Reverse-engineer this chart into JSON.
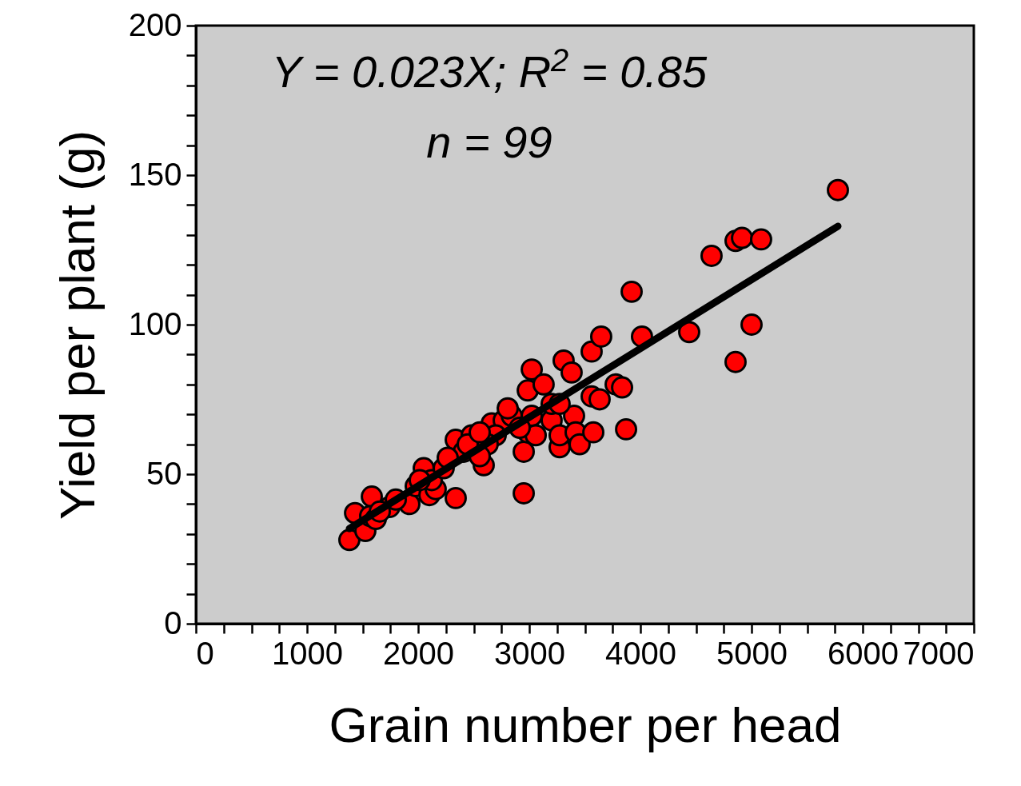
{
  "chart_data": {
    "type": "scatter",
    "xlabel": "Grain number per head",
    "ylabel": "Yield per plant (g)",
    "annotations": [
      "Y = 0.023X; R$^{2}$ = 0.85",
      "n = 99"
    ],
    "xlim": [
      0,
      7000
    ],
    "ylim": [
      0,
      200
    ],
    "xticks": [
      0,
      {
        "value": 250,
        "label": null
      },
      {
        "value": 500,
        "label": null
      },
      {
        "value": 750,
        "label": null
      },
      1000,
      {
        "value": 1250,
        "label": null
      },
      {
        "value": 1500,
        "label": null
      },
      {
        "value": 1750,
        "label": null
      },
      2000,
      {
        "value": 2250,
        "label": null
      },
      {
        "value": 2500,
        "label": null
      },
      {
        "value": 2750,
        "label": null
      },
      3000,
      {
        "value": 3250,
        "label": null
      },
      {
        "value": 3500,
        "label": null
      },
      {
        "value": 3750,
        "label": null
      },
      4000,
      {
        "value": 4250,
        "label": null
      },
      {
        "value": 4500,
        "label": null
      },
      {
        "value": 4750,
        "label": null
      },
      5000,
      {
        "value": 5250,
        "label": null
      },
      {
        "value": 5500,
        "label": null
      },
      {
        "value": 5750,
        "label": null
      },
      6000,
      {
        "value": 6250,
        "label": null
      },
      {
        "value": 6500,
        "label": null
      },
      {
        "value": 6750,
        "label": null
      },
      7000
    ],
    "yticks": [
      0,
      {
        "value": 10,
        "label": null
      },
      {
        "value": 20,
        "label": null
      },
      {
        "value": 30,
        "label": null
      },
      {
        "value": 40,
        "label": null
      },
      50,
      {
        "value": 60,
        "label": null
      },
      {
        "value": 70,
        "label": null
      },
      {
        "value": 80,
        "label": null
      },
      {
        "value": 90,
        "label": null
      },
      100,
      {
        "value": 110,
        "label": null
      },
      {
        "value": 120,
        "label": null
      },
      {
        "value": 130,
        "label": null
      },
      {
        "value": 140,
        "label": null
      },
      150,
      {
        "value": 160,
        "label": null
      },
      {
        "value": 170,
        "label": null
      },
      {
        "value": 180,
        "label": null
      },
      {
        "value": 190,
        "label": null
      },
      200
    ],
    "grid": false,
    "marker": "circle",
    "series": [
      {
        "type": "scatter",
        "color": "#ff0000",
        "x": [
          1381,
          1432,
          1525,
          1583,
          1568,
          1619,
          1741,
          1921,
          1978,
          2050,
          2101,
          2158,
          2122,
          2230,
          2338,
          2338,
          2410,
          2482,
          2590,
          2662,
          2770,
          2842,
          2950,
          2950,
          2986,
          3022,
          2986,
          3129,
          3022,
          3201,
          3273,
          3309,
          3273,
          3381,
          3403,
          3417,
          3453,
          3561,
          3576,
          3561,
          3647,
          3777,
          3835,
          3871,
          3921,
          4014,
          4439,
          4640,
          4856,
          4914,
          5086,
          4856,
          5000,
          5777,
          2698,
          2626,
          3058,
          2806,
          3633,
          3201,
          3273,
          2266,
          2554,
          2446,
          2914,
          2554,
          2014,
          1655,
          1799
        ],
        "values": [
          28,
          37,
          31,
          42.5,
          36,
          35,
          39,
          40,
          46,
          52,
          43,
          45,
          48,
          52,
          42,
          61.5,
          57.5,
          63,
          53,
          67,
          68,
          69.5,
          43.6,
          57.5,
          64,
          85,
          78,
          80,
          69.5,
          68,
          59,
          88,
          63,
          84,
          69.5,
          64,
          60,
          76,
          64,
          91,
          96,
          80,
          79,
          65,
          111,
          96,
          97.5,
          123,
          128,
          129,
          128.5,
          87.5,
          100,
          145,
          63,
          60,
          63,
          72,
          75,
          73.5,
          73.5,
          55.5,
          56,
          60,
          65.5,
          64,
          48,
          37.5,
          41.5
        ]
      },
      {
        "type": "line",
        "color": "#000000",
        "line_style": "solid",
        "marker": "none",
        "x": [
          1381,
          5777
        ],
        "values": [
          31.8,
          132.9
        ]
      }
    ]
  }
}
